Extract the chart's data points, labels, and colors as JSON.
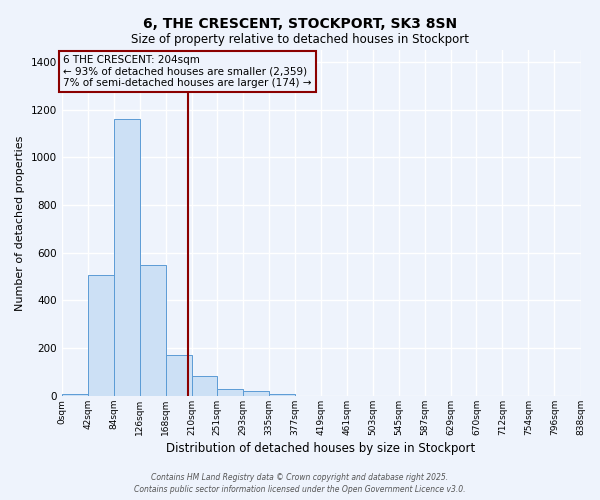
{
  "title": "6, THE CRESCENT, STOCKPORT, SK3 8SN",
  "subtitle": "Size of property relative to detached houses in Stockport",
  "xlabel": "Distribution of detached houses by size in Stockport",
  "ylabel": "Number of detached properties",
  "bin_edges": [
    0,
    42,
    84,
    126,
    168,
    210,
    251,
    293,
    335,
    377,
    419,
    461,
    503,
    545,
    587,
    629,
    670,
    712,
    754,
    796,
    838
  ],
  "bar_heights": [
    10,
    507,
    1160,
    547,
    170,
    85,
    30,
    20,
    8,
    0,
    0,
    0,
    0,
    0,
    0,
    0,
    0,
    0,
    0,
    0
  ],
  "bar_color": "#cce0f5",
  "bar_edge_color": "#5b9bd5",
  "property_size": 204,
  "vline_color": "#8b0000",
  "annotation_line1": "6 THE CRESCENT: 204sqm",
  "annotation_line2": "← 93% of detached houses are smaller (2,359)",
  "annotation_line3": "7% of semi-detached houses are larger (174) →",
  "ylim": [
    0,
    1450
  ],
  "yticks": [
    0,
    200,
    400,
    600,
    800,
    1000,
    1200,
    1400
  ],
  "background_color": "#eef3fc",
  "grid_color": "#ffffff",
  "footer_line1": "Contains HM Land Registry data © Crown copyright and database right 2025.",
  "footer_line2": "Contains public sector information licensed under the Open Government Licence v3.0."
}
